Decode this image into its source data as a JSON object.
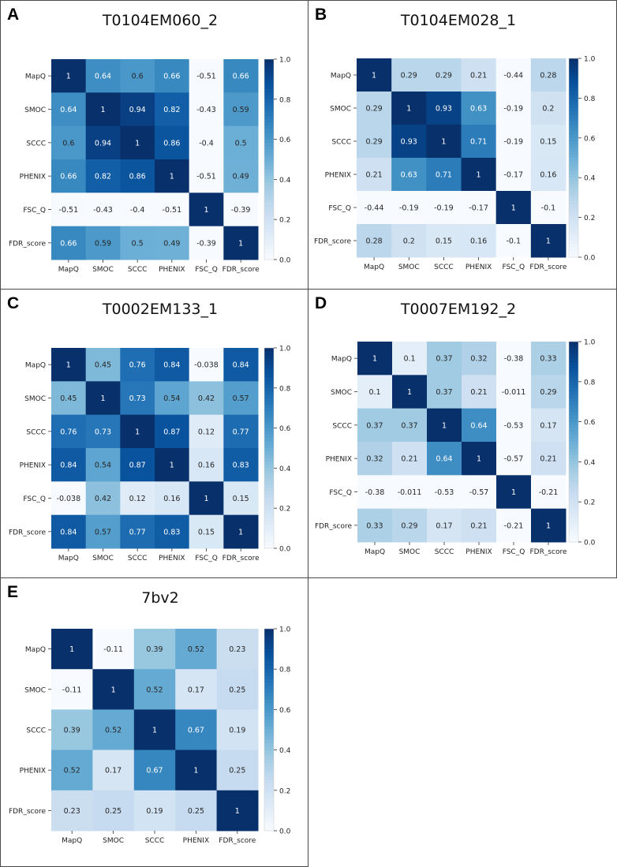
{
  "chart_data": [
    {
      "type": "heatmap",
      "panel_label": "A",
      "title": "T0104EM060_2",
      "labels": [
        "MapQ",
        "SMOC",
        "SCCC",
        "PHENIX",
        "FSC_Q",
        "FDR_score"
      ],
      "values": [
        [
          1,
          0.64,
          0.6,
          0.66,
          -0.51,
          0.66
        ],
        [
          0.64,
          1,
          0.94,
          0.82,
          -0.43,
          0.59
        ],
        [
          0.6,
          0.94,
          1,
          0.86,
          -0.4,
          0.5
        ],
        [
          0.66,
          0.82,
          0.86,
          1,
          -0.51,
          0.49
        ],
        [
          -0.51,
          -0.43,
          -0.4,
          -0.51,
          1,
          -0.39
        ],
        [
          0.66,
          0.59,
          0.5,
          0.49,
          -0.39,
          1
        ]
      ],
      "colorbar_ticks": [
        "0.0",
        "0.2",
        "0.4",
        "0.6",
        "0.8",
        "1.0"
      ],
      "color_range": [
        0,
        1
      ]
    },
    {
      "type": "heatmap",
      "panel_label": "B",
      "title": "T0104EM028_1",
      "labels": [
        "MapQ",
        "SMOC",
        "SCCC",
        "PHENIX",
        "FSC_Q",
        "FDR_score"
      ],
      "values": [
        [
          1,
          0.29,
          0.29,
          0.21,
          -0.44,
          0.28
        ],
        [
          0.29,
          1,
          0.93,
          0.63,
          -0.19,
          0.2
        ],
        [
          0.29,
          0.93,
          1,
          0.71,
          -0.19,
          0.15
        ],
        [
          0.21,
          0.63,
          0.71,
          1,
          -0.17,
          0.16
        ],
        [
          -0.44,
          -0.19,
          -0.19,
          -0.17,
          1,
          -0.1
        ],
        [
          0.28,
          0.2,
          0.15,
          0.16,
          -0.1,
          1
        ]
      ],
      "colorbar_ticks": [
        "0.0",
        "0.2",
        "0.4",
        "0.6",
        "0.8",
        "1.0"
      ],
      "color_range": [
        0,
        1
      ]
    },
    {
      "type": "heatmap",
      "panel_label": "C",
      "title": "T0002EM133_1",
      "labels": [
        "MapQ",
        "SMOC",
        "SCCC",
        "PHENIX",
        "FSC_Q",
        "FDR_score"
      ],
      "values": [
        [
          1,
          0.45,
          0.76,
          0.84,
          -0.038,
          0.84
        ],
        [
          0.45,
          1,
          0.73,
          0.54,
          0.42,
          0.57
        ],
        [
          0.76,
          0.73,
          1,
          0.87,
          0.12,
          0.77
        ],
        [
          0.84,
          0.54,
          0.87,
          1,
          0.16,
          0.83
        ],
        [
          -0.038,
          0.42,
          0.12,
          0.16,
          1,
          0.15
        ],
        [
          0.84,
          0.57,
          0.77,
          0.83,
          0.15,
          1
        ]
      ],
      "colorbar_ticks": [
        "0.0",
        "0.2",
        "0.4",
        "0.6",
        "0.8",
        "1.0"
      ],
      "color_range": [
        0,
        1
      ]
    },
    {
      "type": "heatmap",
      "panel_label": "D",
      "title": "T0007EM192_2",
      "labels": [
        "MapQ",
        "SMOC",
        "SCCC",
        "PHENIX",
        "FSC_Q",
        "FDR_score"
      ],
      "values": [
        [
          1,
          0.1,
          0.37,
          0.32,
          -0.38,
          0.33
        ],
        [
          0.1,
          1,
          0.37,
          0.21,
          -0.011,
          0.29
        ],
        [
          0.37,
          0.37,
          1,
          0.64,
          -0.53,
          0.17
        ],
        [
          0.32,
          0.21,
          0.64,
          1,
          -0.57,
          0.21
        ],
        [
          -0.38,
          -0.011,
          -0.53,
          -0.57,
          1,
          -0.21
        ],
        [
          0.33,
          0.29,
          0.17,
          0.21,
          -0.21,
          1
        ]
      ],
      "colorbar_ticks": [
        "0.0",
        "0.2",
        "0.4",
        "0.6",
        "0.8",
        "1.0"
      ],
      "color_range": [
        0,
        1
      ]
    },
    {
      "type": "heatmap",
      "panel_label": "E",
      "title": "7bv2",
      "labels": [
        "MapQ",
        "SMOC",
        "SCCC",
        "PHENIX",
        "FDR_score"
      ],
      "values": [
        [
          1,
          -0.11,
          0.39,
          0.52,
          0.23
        ],
        [
          -0.11,
          1,
          0.52,
          0.17,
          0.25
        ],
        [
          0.39,
          0.52,
          1,
          0.67,
          0.19
        ],
        [
          0.52,
          0.17,
          0.67,
          1,
          0.25
        ],
        [
          0.23,
          0.25,
          0.19,
          0.25,
          1
        ]
      ],
      "colorbar_ticks": [
        "0.0",
        "0.2",
        "0.4",
        "0.6",
        "0.8",
        "1.0"
      ],
      "color_range": [
        0,
        1
      ]
    }
  ]
}
